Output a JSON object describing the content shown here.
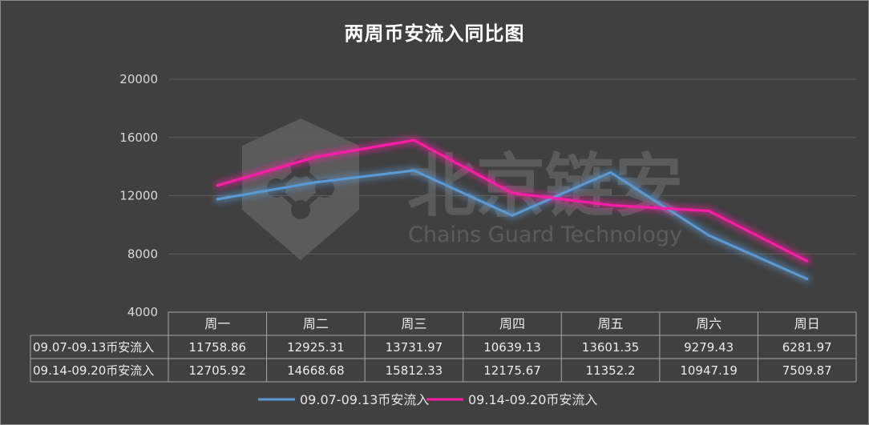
{
  "chart_data": {
    "type": "line",
    "title": "两周币安流入同比图",
    "categories": [
      "周一",
      "周二",
      "周三",
      "周四",
      "周五",
      "周六",
      "周日"
    ],
    "series": [
      {
        "name": "09.07-09.13币安流入",
        "color": "#5b9bd5",
        "values": [
          11758.86,
          12925.31,
          13731.97,
          10639.13,
          13601.35,
          9279.43,
          6281.97
        ],
        "labels": [
          "11758.86",
          "12925.31",
          "13731.97",
          "10639.13",
          "13601.35",
          "9279.43",
          "6281.97"
        ]
      },
      {
        "name": "09.14-09.20币安流入",
        "color": "#ff1ca8",
        "values": [
          12705.92,
          14668.68,
          15812.33,
          12175.67,
          11352.2,
          10947.19,
          7509.87
        ],
        "labels": [
          "12705.92",
          "14668.68",
          "15812.33",
          "12175.67",
          "11352.2",
          "10947.19",
          "7509.87"
        ]
      }
    ],
    "ylim": [
      4000,
      20000
    ],
    "yticks": [
      "4000",
      "8000",
      "12000",
      "16000",
      "20000"
    ],
    "grid": true,
    "legend": "bottom",
    "data_table": true
  },
  "watermark": {
    "title": "北京链安",
    "subtitle": "Chains Guard Technology",
    "icon": "hexagon-shield-logo"
  }
}
